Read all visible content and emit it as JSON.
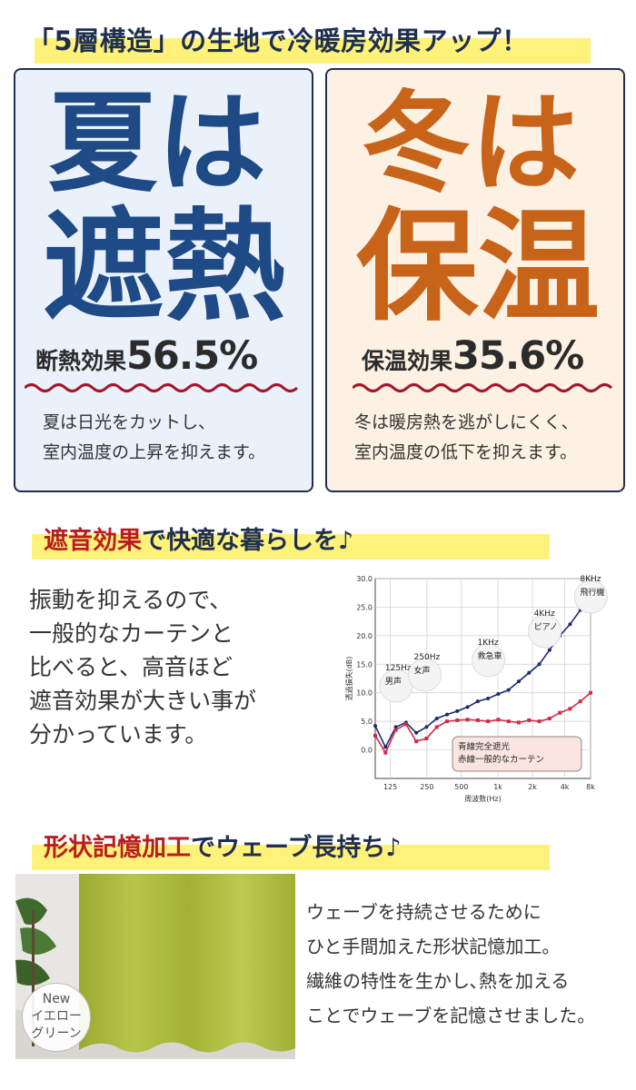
{
  "header": {
    "title": "「5層構造」の生地で冷暖房効果アップ！"
  },
  "summer": {
    "big_line1": "夏は",
    "big_line2": "遮熱",
    "effect_label": "断熱効果",
    "effect_value": "56.5%",
    "desc_line1": "夏は日光をカットし、",
    "desc_line2": "室内温度の上昇を抑えます。"
  },
  "winter": {
    "big_line1": "冬は",
    "big_line2": "保温",
    "effect_label": "保温効果",
    "effect_value": "35.6%",
    "desc_line1": "冬は暖房熱を逃がしにくく、",
    "desc_line2": "室内温度の低下を抑えます。"
  },
  "sound": {
    "heading_red": "遮音効果",
    "heading_rest": "で快適な暮らしを♪",
    "lines": [
      "振動を抑えるので、",
      "一般的なカーテンと",
      "比べると、高音ほど",
      "遮音効果が大きい事が",
      "分かっています。"
    ]
  },
  "chart_data": {
    "type": "line",
    "ylabel": "透過損失(dB)",
    "xlabel": "周波数(Hz)",
    "ylim": [
      -5,
      30
    ],
    "yticks": [
      "30.0",
      "25.0",
      "20.0",
      "15.0",
      "10.0",
      "5.0",
      "0.0"
    ],
    "xticks": [
      "125",
      "250",
      "500",
      "1k",
      "2k",
      "4k",
      "8k"
    ],
    "x": [
      1,
      2,
      3,
      4,
      5,
      6,
      7,
      8,
      9,
      10,
      11,
      12,
      13,
      14,
      15,
      16,
      17,
      18,
      19,
      20,
      21,
      22
    ],
    "series": [
      {
        "name": "青線完全遮光",
        "color": "#1a2a6c",
        "values": [
          4.2,
          0.5,
          4.0,
          4.8,
          3.0,
          4.0,
          5.5,
          6.2,
          6.8,
          7.5,
          8.5,
          9.0,
          9.8,
          10.5,
          12.0,
          13.5,
          15.0,
          17.5,
          20.0,
          22.0,
          24.5,
          26.5
        ]
      },
      {
        "name": "赤線一般的なカーテン",
        "color": "#d22a4a",
        "values": [
          2.5,
          -0.5,
          3.5,
          4.5,
          1.5,
          2.0,
          4.0,
          5.0,
          5.2,
          5.3,
          5.2,
          5.0,
          5.3,
          5.0,
          4.8,
          5.2,
          5.0,
          5.5,
          6.5,
          7.2,
          8.5,
          10.0
        ]
      }
    ],
    "annotations": [
      {
        "hz": "125Hz",
        "label": "男声"
      },
      {
        "hz": "250Hz",
        "label": "女声"
      },
      {
        "hz": "1KHz",
        "label": "救急車"
      },
      {
        "hz": "4KHz",
        "label": "ピアノ"
      },
      {
        "hz": "8KHz",
        "label": "飛行機"
      }
    ],
    "legend": [
      "青線完全遮光",
      "赤線一般的なカーテン"
    ],
    "legend_position": "bottom-right"
  },
  "memory": {
    "heading_red": "形状記憶加工",
    "heading_rest": "でウェーブ長持ち♪",
    "lines": [
      "ウェーブを持続させるために",
      "ひと手間加えた形状記憶加工。",
      "繊維の特性を生かし､熱を加える",
      "ことでウェーブを記憶させました。"
    ],
    "badge": [
      "New",
      "イエロー",
      "グリーン"
    ]
  },
  "colors": {
    "navy": "#1f2f4f",
    "summer_blue": "#1e4a86",
    "winter_orange": "#c8641a",
    "highlight": "#fff27a",
    "accent_red": "#b81e1e"
  }
}
